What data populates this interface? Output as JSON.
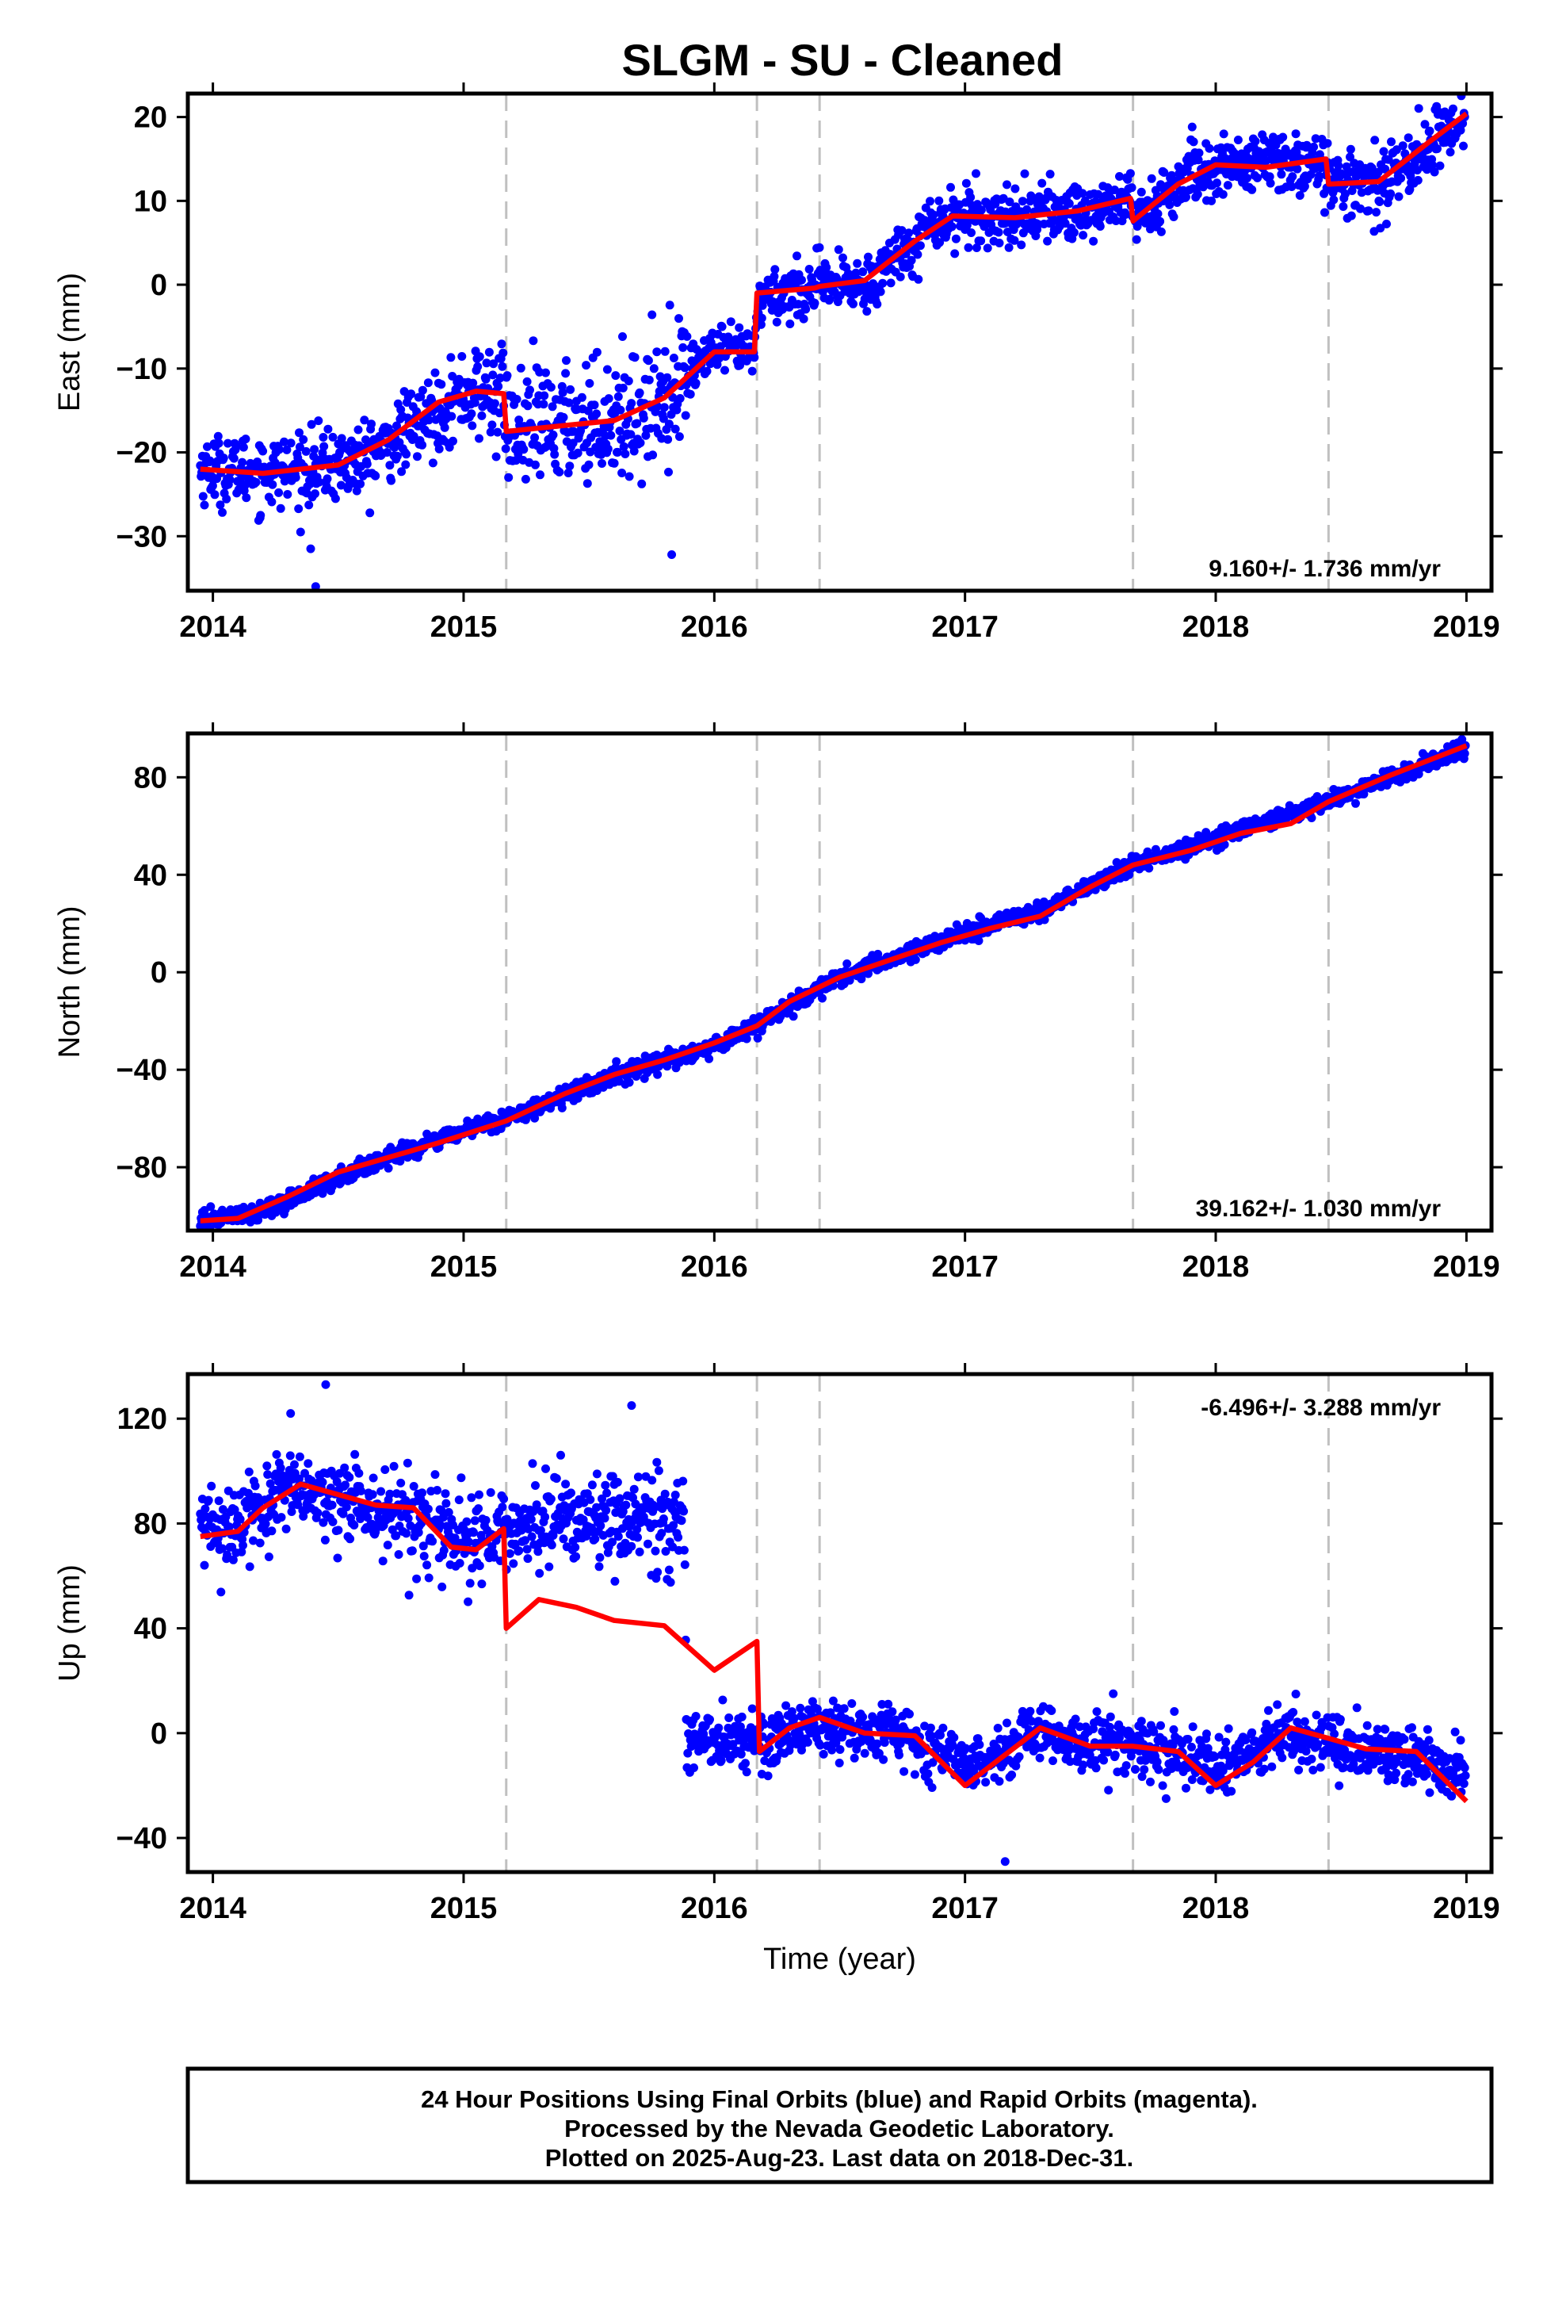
{
  "title": "SLGM  - SU - Cleaned",
  "footer": {
    "lines": [
      "24 Hour Positions Using Final Orbits (blue) and Rapid Orbits (magenta).",
      "Processed by the Nevada Geodetic Laboratory.",
      "Plotted on 2025-Aug-23. Last data on 2018-Dec-31."
    ]
  },
  "colors": {
    "final_orbits": "#0000ff",
    "model_fit": "#ff0000",
    "break_lines": "#c0c0c0",
    "frame": "#000000"
  },
  "chart_data": [
    {
      "type": "scatter",
      "component": "east",
      "ylabel": "East (mm)",
      "xlabel": "",
      "xlim": [
        2013.9,
        2019.1
      ],
      "ylim": [
        -36.5,
        22.8
      ],
      "xticks": [
        2014,
        2015,
        2016,
        2017,
        2018,
        2019
      ],
      "yticks": [
        -30,
        -20,
        -10,
        0,
        10,
        20
      ],
      "rate_label": "9.160+/- 1.736 mm/yr",
      "rate_position": "bottom-right",
      "breaks": [
        2015.17,
        2016.17,
        2016.42,
        2017.67,
        2018.45
      ],
      "data_start": 2013.95,
      "data_end": 2018.997,
      "gaps": [],
      "offsets_at_breaks": [
        -4.5,
        6.5,
        0.0,
        -2.8,
        -2.7
      ],
      "series": [
        {
          "name": "Final Orbits",
          "trend_x": [
            2013.95,
            2014.3,
            2014.6,
            2014.8,
            2015.0,
            2015.16,
            2015.18,
            2015.5,
            2015.7,
            2015.9,
            2016.0,
            2016.16,
            2016.18,
            2016.42,
            2016.6,
            2016.9,
            2017.2,
            2017.5,
            2017.66,
            2017.68,
            2017.9,
            2018.1,
            2018.44,
            2018.46,
            2018.7,
            2018.9,
            2018.997
          ],
          "trend_y": [
            -22,
            -22.3,
            -21,
            -17,
            -13,
            -13,
            -17.5,
            -16.2,
            -15.5,
            -10,
            -8,
            -8,
            -1.5,
            -0.2,
            0,
            8,
            8.2,
            8.8,
            10.5,
            7.7,
            13,
            14.5,
            14.5,
            11.7,
            12.5,
            18,
            20.3
          ],
          "scatter_sd": [
            [
              2013.95,
              2.0
            ],
            [
              2014.95,
              2.3
            ],
            [
              2015.17,
              3.5
            ],
            [
              2015.9,
              3.5
            ],
            [
              2015.91,
              1.4
            ],
            [
              2016.17,
              1.4
            ],
            [
              2016.18,
              1.7
            ],
            [
              2019.0,
              1.9
            ]
          ],
          "outliers": [
            [
              2014.39,
              -31.5
            ],
            [
              2014.41,
              -36
            ],
            [
              2015.83,
              -32.2
            ],
            [
              2014.19,
              -27.5
            ]
          ]
        }
      ],
      "model": {
        "name": "Model fit",
        "x": [
          2013.95,
          2014.2,
          2014.5,
          2014.7,
          2014.9,
          2015.05,
          2015.16,
          2015.17,
          2015.4,
          2015.6,
          2015.8,
          2016.0,
          2016.16,
          2016.17,
          2016.4,
          2016.42,
          2016.6,
          2016.8,
          2016.95,
          2017.2,
          2017.45,
          2017.66,
          2017.67,
          2017.85,
          2018.0,
          2018.2,
          2018.44,
          2018.45,
          2018.65,
          2018.85,
          2019.0
        ],
        "y": [
          -22,
          -22.5,
          -21.5,
          -18.5,
          -14,
          -12.7,
          -13.0,
          -17.5,
          -16.8,
          -16.2,
          -13.5,
          -8.0,
          -8.0,
          -1.0,
          -0.4,
          -0.2,
          0.5,
          5.2,
          8.2,
          8.0,
          8.8,
          10.3,
          7.6,
          12.0,
          14.3,
          14.0,
          15.0,
          12.0,
          12.3,
          17.0,
          20.4
        ]
      }
    },
    {
      "type": "scatter",
      "component": "north",
      "ylabel": "North (mm)",
      "xlabel": "",
      "xlim": [
        2013.9,
        2019.1
      ],
      "ylim": [
        -106,
        98
      ],
      "xticks": [
        2014,
        2015,
        2016,
        2017,
        2018,
        2019
      ],
      "yticks": [
        -80,
        -40,
        0,
        40,
        80
      ],
      "rate_label": "39.162+/- 1.030 mm/yr",
      "rate_position": "bottom-right",
      "breaks": [
        2015.17,
        2016.17,
        2016.42,
        2017.67,
        2018.45
      ],
      "data_start": 2013.95,
      "data_end": 2018.997,
      "gaps": [],
      "series": [
        {
          "name": "Final Orbits",
          "trend_x": [
            2013.95,
            2014.2,
            2014.6,
            2015.0,
            2015.17,
            2015.5,
            2016.0,
            2016.17,
            2016.5,
            2017.0,
            2017.3,
            2017.67,
            2018.0,
            2018.45,
            2019.0
          ],
          "trend_y": [
            -102,
            -98,
            -80,
            -65,
            -60,
            -46,
            -30,
            -22,
            -2,
            16,
            25,
            44,
            55,
            70,
            92
          ],
          "scatter_sd": [
            [
              2013.95,
              1.8
            ],
            [
              2019.0,
              1.8
            ]
          ],
          "outliers": []
        }
      ],
      "model": {
        "name": "Model fit",
        "x": [
          2013.95,
          2014.1,
          2014.3,
          2014.5,
          2014.7,
          2014.9,
          2015.17,
          2015.4,
          2015.6,
          2015.8,
          2016.0,
          2016.17,
          2016.3,
          2016.5,
          2016.7,
          2016.9,
          2017.1,
          2017.3,
          2017.5,
          2017.67,
          2017.9,
          2018.1,
          2018.3,
          2018.45,
          2018.7,
          2019.0
        ],
        "y": [
          -102,
          -101,
          -92,
          -82,
          -76,
          -70,
          -61,
          -50,
          -42,
          -36,
          -29,
          -22,
          -12,
          -2,
          5,
          12,
          18,
          23,
          35,
          44,
          50,
          57,
          61,
          70,
          81,
          93
        ]
      }
    },
    {
      "type": "scatter",
      "component": "up",
      "ylabel": "Up (mm)",
      "xlabel": "Time (year)",
      "xlim": [
        2013.9,
        2019.1
      ],
      "ylim": [
        -53,
        137
      ],
      "xticks": [
        2014,
        2015,
        2016,
        2017,
        2018,
        2019
      ],
      "yticks": [
        -40,
        0,
        40,
        80,
        120
      ],
      "rate_label": "-6.496+/- 3.288 mm/yr",
      "rate_position": "top-right",
      "breaks": [
        2015.17,
        2016.17,
        2016.42,
        2017.67,
        2018.45
      ],
      "data_start": 2013.95,
      "data_end": 2018.997,
      "gaps": [
        [
          2015.88,
          2015.88
        ]
      ],
      "series": [
        {
          "name": "Final Orbits",
          "trend_x": [
            2013.95,
            2014.1,
            2014.3,
            2014.5,
            2014.7,
            2014.9,
            2015.0,
            2015.16,
            2015.2,
            2015.5,
            2015.88,
            2015.89,
            2016.17,
            2016.42,
            2016.7,
            2017.0,
            2017.3,
            2017.67,
            2018.0,
            2018.3,
            2018.45,
            2018.7,
            2019.0
          ],
          "trend_y": [
            78,
            80,
            92,
            88,
            84,
            76,
            72,
            75,
            80,
            82,
            80,
            -2,
            -2,
            2,
            -1,
            -12,
            0,
            -5,
            -13,
            0,
            -4,
            -7,
            -16
          ],
          "scatter_sd": [
            [
              2013.95,
              7
            ],
            [
              2015.88,
              10
            ],
            [
              2015.89,
              5.5
            ],
            [
              2019.0,
              5.5
            ]
          ],
          "outliers": [
            [
              2014.31,
              122
            ],
            [
              2014.45,
              133
            ],
            [
              2015.67,
              125
            ],
            [
              2017.16,
              -49
            ]
          ]
        }
      ],
      "model": {
        "name": "Model fit",
        "x": [
          2013.95,
          2014.1,
          2014.2,
          2014.35,
          2014.5,
          2014.65,
          2014.8,
          2014.95,
          2015.05,
          2015.16,
          2015.17,
          2015.3,
          2015.45,
          2015.6,
          2015.8,
          2016.0,
          2016.17,
          2016.18,
          2016.3,
          2016.42,
          2016.6,
          2016.8,
          2017.0,
          2017.15,
          2017.3,
          2017.5,
          2017.67,
          2017.85,
          2018.0,
          2018.15,
          2018.3,
          2018.45,
          2018.6,
          2018.8,
          2019.0
        ],
        "y": [
          75,
          77,
          86,
          95,
          91,
          87,
          86,
          71,
          70,
          78,
          40,
          51,
          48,
          43,
          41,
          24,
          35,
          -7,
          2,
          6,
          0,
          -1,
          -20,
          -9,
          2,
          -5,
          -5,
          -7,
          -20,
          -11,
          2,
          -2,
          -6,
          -7,
          -26
        ]
      }
    }
  ]
}
